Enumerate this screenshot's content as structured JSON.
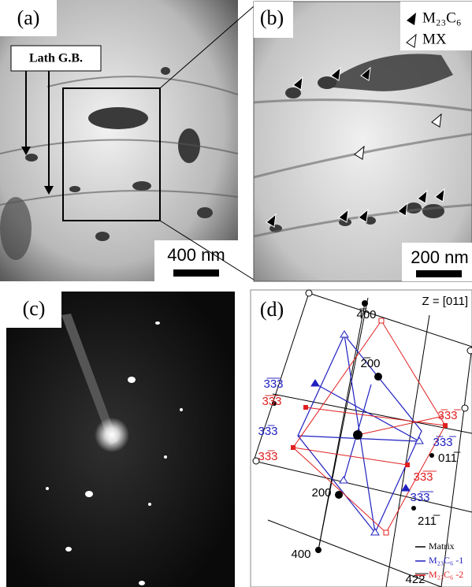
{
  "panels": [
    {
      "label": "(a)",
      "annotation": "Lath G.B.",
      "scale_bar": "400 nm"
    },
    {
      "label": "(b)",
      "legend": [
        "M₂₃C₆",
        "MX"
      ],
      "scale_bar": "200 nm"
    },
    {
      "label": "(c)"
    },
    {
      "label": "(d)",
      "zone_axis": "Z = [011]",
      "spots": [
        {
          "text": "4̅00",
          "color": "#000000"
        },
        {
          "text": "2̅00",
          "color": "#000000"
        },
        {
          "text": "3̅3̅3",
          "color": "#2020c0"
        },
        {
          "text": "3̅3̅3",
          "color": "#e02020"
        },
        {
          "text": "33̅3",
          "color": "#2020c0"
        },
        {
          "text": "33̅3",
          "color": "#e02020"
        },
        {
          "text": "3̅33̅",
          "color": "#e02020"
        },
        {
          "text": "3̅33̅",
          "color": "#2020c0"
        },
        {
          "text": "011̅",
          "color": "#000000"
        },
        {
          "text": "33̅3̅",
          "color": "#e02020"
        },
        {
          "text": "33̅3̅",
          "color": "#2020c0"
        },
        {
          "text": "200",
          "color": "#000000"
        },
        {
          "text": "211̅",
          "color": "#000000"
        },
        {
          "text": "400",
          "color": "#000000"
        },
        {
          "text": "42̅2̅",
          "color": "#000000"
        }
      ],
      "legend": [
        {
          "text": "Matrix",
          "color": "#000000"
        },
        {
          "text": "M₂₃C₆ -1",
          "color": "#2020c0"
        },
        {
          "text": "M₂₃C₆ -2",
          "color": "#e02020"
        }
      ]
    }
  ]
}
